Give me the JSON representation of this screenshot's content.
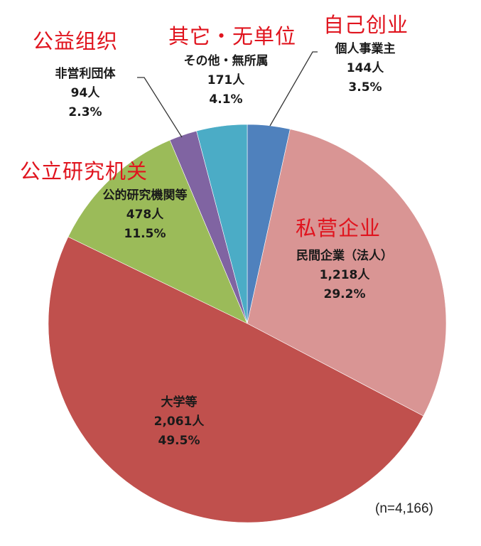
{
  "chart_data": {
    "type": "pie",
    "title": "",
    "total_note": "(n=4,166)",
    "total": 4166,
    "start_angle_deg": 0,
    "direction": "clockwise",
    "categories": [
      "個人事業主",
      "民間企業（法人）",
      "大学等",
      "公的研究機関等",
      "非営利団体",
      "その他・無所属"
    ],
    "values": [
      144,
      1218,
      2061,
      478,
      94,
      171
    ],
    "percentages": [
      3.5,
      29.2,
      49.5,
      11.5,
      2.3,
      4.1
    ],
    "colors": [
      "#4f81bd",
      "#d99594",
      "#c0504d",
      "#9bbb59",
      "#8064a2",
      "#4bacc6"
    ],
    "slices": [
      {
        "label": "個人事業主",
        "count_text": "144人",
        "pct_text": "3.5%",
        "annotation": "自己创业",
        "value": 144,
        "pct": 3.5,
        "color": "#4f81bd"
      },
      {
        "label": "民間企業（法人）",
        "count_text": "1,218人",
        "pct_text": "29.2%",
        "annotation": "私营企业",
        "value": 1218,
        "pct": 29.2,
        "color": "#d99594"
      },
      {
        "label": "大学等",
        "count_text": "2,061人",
        "pct_text": "49.5%",
        "annotation": "",
        "value": 2061,
        "pct": 49.5,
        "color": "#c0504d"
      },
      {
        "label": "公的研究機関等",
        "count_text": "478人",
        "pct_text": "11.5%",
        "annotation": "公立研究机关",
        "value": 478,
        "pct": 11.5,
        "color": "#9bbb59"
      },
      {
        "label": "非営利団体",
        "count_text": "94人",
        "pct_text": "2.3%",
        "annotation": "公益组织",
        "value": 94,
        "pct": 2.3,
        "color": "#8064a2"
      },
      {
        "label": "その他・無所属",
        "count_text": "171人",
        "pct_text": "4.1%",
        "annotation": "其它・无单位",
        "value": 171,
        "pct": 4.1,
        "color": "#4bacc6"
      }
    ]
  }
}
